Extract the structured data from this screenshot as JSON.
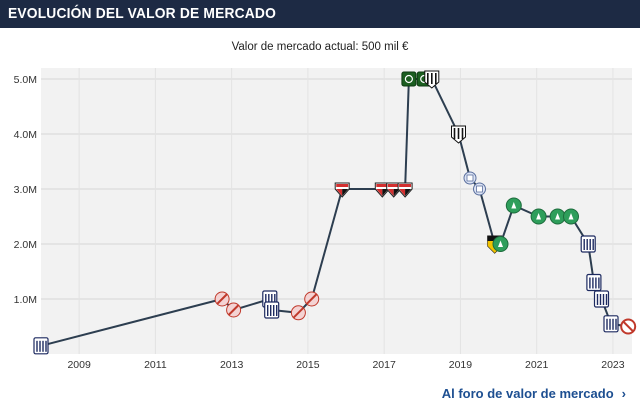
{
  "header": {
    "title": "EVOLUCIÓN DEL VALOR DE MERCADO"
  },
  "subtitle": "Valor de mercado actual: 500 mil €",
  "footer": {
    "link_label": "Al foro de valor de mercado",
    "chevron_icon": "chevron-right-icon"
  },
  "colors": {
    "header_bg": "#1d2a44",
    "line": "#2d3e50",
    "plot_bg": "#f2f2f2",
    "link": "#1d4f91"
  },
  "chart_data": {
    "type": "line",
    "title": "Valor de mercado actual: 500 mil €",
    "xlabel": "",
    "ylabel": "",
    "xlim": [
      2008.0,
      2023.5
    ],
    "ylim": [
      0,
      5.2
    ],
    "x_ticks": [
      2009,
      2011,
      2013,
      2015,
      2017,
      2019,
      2021,
      2023
    ],
    "y_ticks": [
      1.0,
      2.0,
      3.0,
      4.0,
      5.0
    ],
    "y_tick_labels": [
      "1.0M",
      "2.0M",
      "3.0M",
      "4.0M",
      "5.0M"
    ],
    "grid": true,
    "unit": "M €",
    "series": [
      {
        "name": "Valor de mercado",
        "points": [
          {
            "x": 2008.0,
            "y": 0.15,
            "club": "alianza"
          },
          {
            "x": 2012.75,
            "y": 1.0,
            "club": "rayo"
          },
          {
            "x": 2013.05,
            "y": 0.8,
            "club": "rayo"
          },
          {
            "x": 2014.0,
            "y": 1.0,
            "club": "alianza"
          },
          {
            "x": 2014.05,
            "y": 0.8,
            "club": "alianza"
          },
          {
            "x": 2014.75,
            "y": 0.75,
            "club": "rayo"
          },
          {
            "x": 2015.1,
            "y": 1.0,
            "club": "rayo"
          },
          {
            "x": 2015.9,
            "y": 3.0,
            "club": "saopaulo"
          },
          {
            "x": 2016.95,
            "y": 3.0,
            "club": "saopaulo"
          },
          {
            "x": 2017.25,
            "y": 3.0,
            "club": "saopaulo"
          },
          {
            "x": 2017.55,
            "y": 3.0,
            "club": "saopaulo"
          },
          {
            "x": 2017.65,
            "y": 5.0,
            "club": "palmeiras"
          },
          {
            "x": 2018.05,
            "y": 5.0,
            "club": "palmeiras"
          },
          {
            "x": 2018.25,
            "y": 5.0,
            "club": "santos"
          },
          {
            "x": 2018.95,
            "y": 4.0,
            "club": "santos"
          },
          {
            "x": 2019.25,
            "y": 3.2,
            "club": "sanmartin"
          },
          {
            "x": 2019.5,
            "y": 3.0,
            "club": "sanmartin"
          },
          {
            "x": 2019.9,
            "y": 2.0,
            "club": "sport"
          },
          {
            "x": 2020.05,
            "y": 2.0,
            "club": "chape"
          },
          {
            "x": 2020.4,
            "y": 2.7,
            "club": "chape"
          },
          {
            "x": 2021.05,
            "y": 2.5,
            "club": "chape"
          },
          {
            "x": 2021.55,
            "y": 2.5,
            "club": "chape"
          },
          {
            "x": 2021.9,
            "y": 2.5,
            "club": "chape"
          },
          {
            "x": 2022.35,
            "y": 2.0,
            "club": "alianza"
          },
          {
            "x": 2022.5,
            "y": 1.3,
            "club": "alianza"
          },
          {
            "x": 2022.7,
            "y": 1.0,
            "club": "alianza"
          },
          {
            "x": 2022.95,
            "y": 0.55,
            "club": "alianza"
          },
          {
            "x": 2023.4,
            "y": 0.5,
            "club": "sin-club"
          }
        ]
      }
    ]
  }
}
